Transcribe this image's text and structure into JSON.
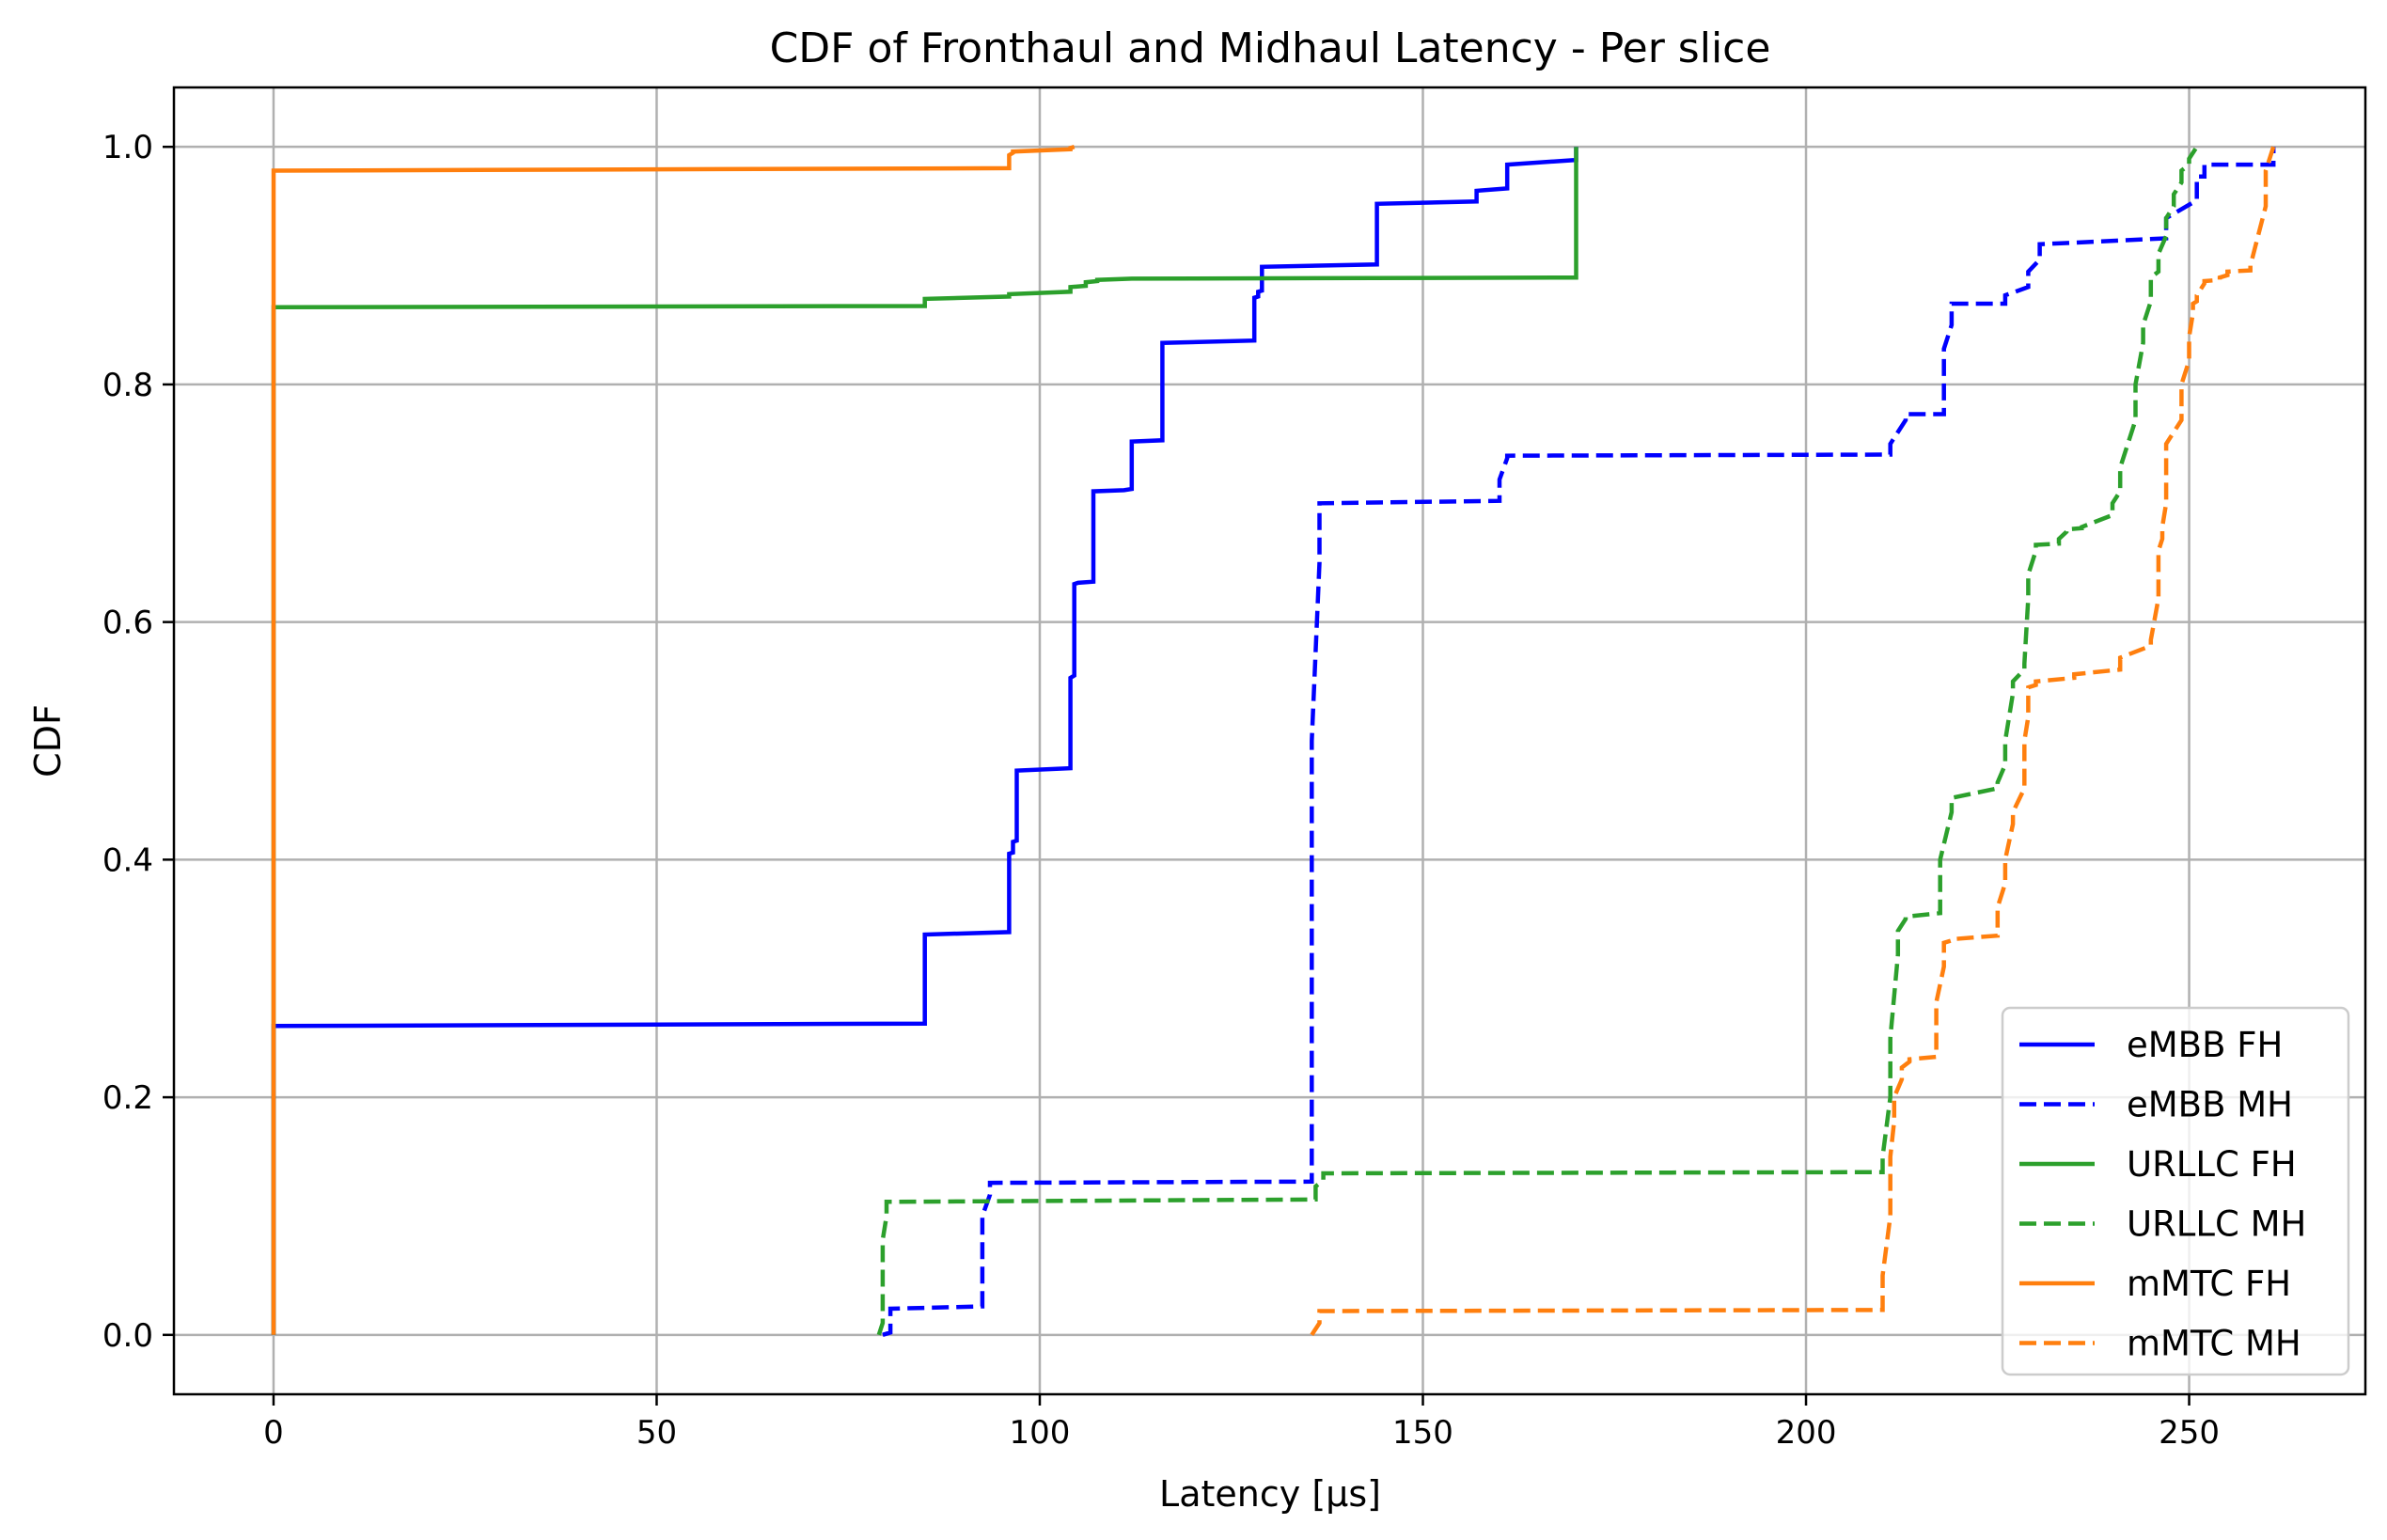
{
  "chart_data": {
    "type": "line",
    "title": "CDF of Fronthaul and Midhaul Latency - Per slice",
    "xlabel": "Latency [µs]",
    "ylabel": "CDF",
    "xlim": [
      -13,
      273
    ],
    "ylim": [
      -0.05,
      1.05
    ],
    "xticks": [
      0,
      50,
      100,
      150,
      200,
      250
    ],
    "yticks": [
      0.0,
      0.2,
      0.4,
      0.6,
      0.8,
      1.0
    ],
    "xtick_labels": [
      "0",
      "50",
      "100",
      "150",
      "200",
      "250"
    ],
    "ytick_labels": [
      "0.0",
      "0.2",
      "0.4",
      "0.6",
      "0.8",
      "1.0"
    ],
    "grid": true,
    "legend_position": "lower-right",
    "series": [
      {
        "name": "eMBB FH",
        "color": "#0000ff",
        "dash": "solid",
        "x": [
          0,
          0,
          85,
          85,
          96,
          96,
          96.5,
          96.5,
          97,
          97,
          104,
          104,
          104.5,
          104.5,
          105,
          105,
          107,
          107,
          111,
          111,
          112,
          112,
          116,
          116,
          128,
          128,
          128.5,
          128.5,
          129,
          129,
          144,
          144,
          157,
          157,
          161,
          161,
          170,
          170
        ],
        "y": [
          0,
          0.26,
          0.262,
          0.337,
          0.339,
          0.405,
          0.406,
          0.415,
          0.416,
          0.475,
          0.477,
          0.553,
          0.555,
          0.632,
          0.633,
          0.633,
          0.634,
          0.71,
          0.711,
          0.711,
          0.712,
          0.752,
          0.753,
          0.835,
          0.837,
          0.873,
          0.874,
          0.878,
          0.879,
          0.899,
          0.901,
          0.952,
          0.954,
          0.963,
          0.965,
          0.985,
          0.989,
          1.0
        ]
      },
      {
        "name": "eMBB MH",
        "color": "#0000ff",
        "dash": "dashed",
        "x": [
          79.5,
          80.5,
          80.5,
          92.5,
          92.5,
          93.5,
          93.5,
          135.5,
          135.5,
          136.5,
          136.5,
          160,
          160,
          161,
          161,
          211,
          211,
          213,
          213,
          218,
          218,
          219,
          219,
          226,
          226,
          229,
          229,
          230.5,
          230.5,
          247,
          247,
          251,
          251,
          252,
          252,
          261,
          261
        ],
        "y": [
          0,
          0.002,
          0.022,
          0.024,
          0.1,
          0.118,
          0.128,
          0.129,
          0.5,
          0.65,
          0.7,
          0.702,
          0.72,
          0.738,
          0.74,
          0.741,
          0.75,
          0.77,
          0.775,
          0.775,
          0.83,
          0.85,
          0.868,
          0.868,
          0.875,
          0.882,
          0.895,
          0.905,
          0.918,
          0.923,
          0.94,
          0.955,
          0.975,
          0.975,
          0.985,
          0.985,
          1.0
        ]
      },
      {
        "name": "URLLC FH",
        "color": "#2ca02c",
        "dash": "solid",
        "x": [
          0,
          0,
          85,
          85,
          96,
          96,
          104,
          104,
          106,
          106,
          107.5,
          107.5,
          112,
          112,
          170,
          170
        ],
        "y": [
          0,
          0.865,
          0.866,
          0.872,
          0.874,
          0.876,
          0.878,
          0.882,
          0.883,
          0.886,
          0.887,
          0.888,
          0.889,
          0.889,
          0.89,
          1.0
        ]
      },
      {
        "name": "URLLC MH",
        "color": "#2ca02c",
        "dash": "dashed",
        "x": [
          79,
          79.5,
          79.5,
          80,
          80,
          136,
          136,
          137,
          137,
          210,
          210,
          211,
          211,
          212,
          212,
          213,
          213,
          217.5,
          217.5,
          219,
          219,
          225,
          225,
          226,
          226,
          227,
          227,
          228.5,
          228.5,
          229,
          229,
          230,
          230,
          233,
          233,
          234,
          234,
          236,
          236,
          240,
          240,
          241,
          241,
          243,
          243,
          244,
          244,
          245,
          245,
          246,
          246,
          247,
          247,
          248,
          248,
          249,
          249,
          250,
          250,
          251
        ],
        "y": [
          0,
          0.01,
          0.08,
          0.1,
          0.112,
          0.114,
          0.125,
          0.13,
          0.136,
          0.137,
          0.15,
          0.2,
          0.25,
          0.32,
          0.34,
          0.35,
          0.352,
          0.355,
          0.4,
          0.44,
          0.452,
          0.46,
          0.465,
          0.48,
          0.5,
          0.54,
          0.55,
          0.56,
          0.565,
          0.62,
          0.64,
          0.66,
          0.665,
          0.666,
          0.67,
          0.676,
          0.678,
          0.679,
          0.68,
          0.69,
          0.7,
          0.71,
          0.73,
          0.77,
          0.8,
          0.835,
          0.85,
          0.87,
          0.89,
          0.895,
          0.91,
          0.925,
          0.94,
          0.95,
          0.96,
          0.97,
          0.98,
          0.985,
          0.99,
          1.0
        ]
      },
      {
        "name": "mMTC FH",
        "color": "#ff7f0e",
        "dash": "solid",
        "x": [
          0,
          0,
          96,
          96,
          96.5,
          96.5,
          104,
          104,
          104.5
        ],
        "y": [
          0,
          0.98,
          0.982,
          0.993,
          0.995,
          0.996,
          0.998,
          0.999,
          1.0
        ]
      },
      {
        "name": "mMTC MH",
        "color": "#ff7f0e",
        "dash": "dashed",
        "x": [
          135.5,
          136.5,
          136.5,
          210,
          210,
          211,
          211,
          211.5,
          211.5,
          212.5,
          212.5,
          213.5,
          213.5,
          217,
          217,
          218,
          218,
          219,
          219,
          225,
          225,
          226,
          226,
          227,
          227,
          228.5,
          228.5,
          229,
          229,
          230,
          230,
          235,
          235,
          241,
          241,
          245,
          245,
          246,
          246,
          246.5,
          246.5,
          247,
          247,
          249,
          249,
          250,
          250,
          250.5,
          250.5,
          251,
          251,
          252,
          252,
          254,
          254,
          255,
          255,
          258,
          258,
          260,
          260,
          261
        ],
        "y": [
          0,
          0.01,
          0.02,
          0.021,
          0.05,
          0.1,
          0.15,
          0.18,
          0.2,
          0.215,
          0.225,
          0.23,
          0.232,
          0.234,
          0.28,
          0.31,
          0.33,
          0.332,
          0.333,
          0.336,
          0.36,
          0.38,
          0.4,
          0.43,
          0.44,
          0.46,
          0.5,
          0.52,
          0.545,
          0.547,
          0.55,
          0.553,
          0.556,
          0.56,
          0.57,
          0.58,
          0.585,
          0.62,
          0.66,
          0.67,
          0.68,
          0.7,
          0.75,
          0.77,
          0.8,
          0.82,
          0.84,
          0.86,
          0.868,
          0.87,
          0.875,
          0.885,
          0.887,
          0.888,
          0.89,
          0.892,
          0.895,
          0.896,
          0.9,
          0.95,
          0.98,
          1.0
        ]
      }
    ]
  }
}
